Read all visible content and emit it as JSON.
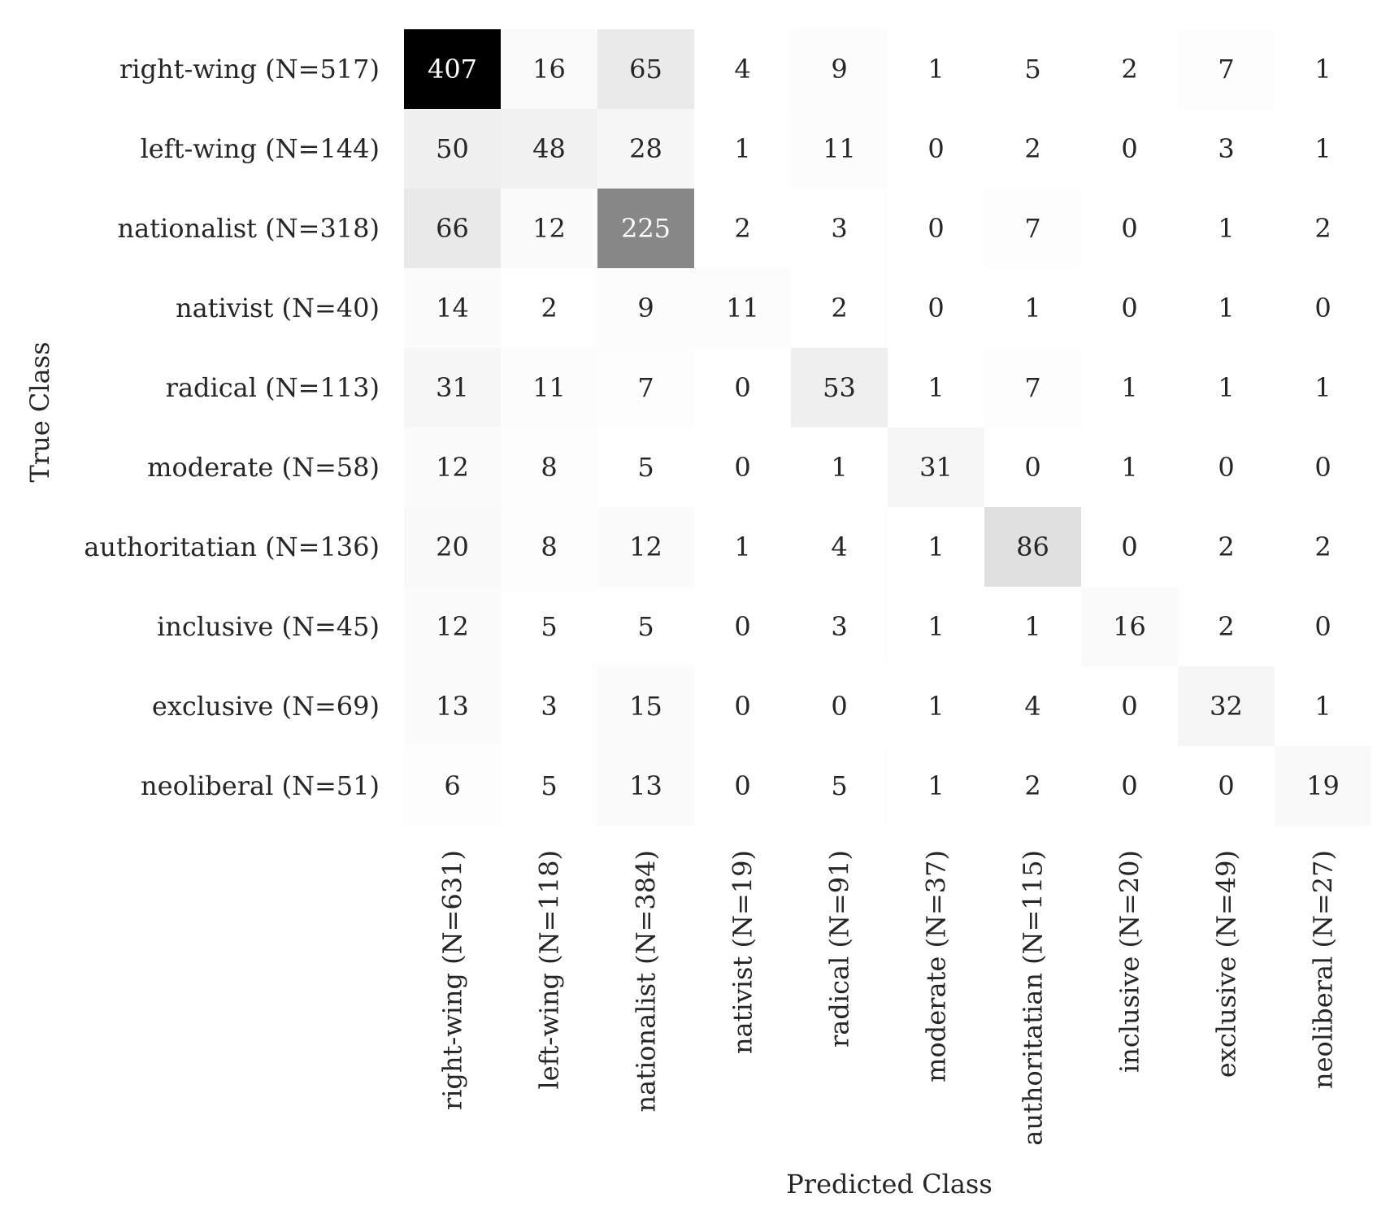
{
  "chart_data": {
    "type": "heatmap",
    "title": "",
    "xlabel": "Predicted Class",
    "ylabel": "True Class",
    "row_labels": [
      "right-wing (N=517)",
      "left-wing (N=144)",
      "nationalist (N=318)",
      "nativist (N=40)",
      "radical (N=113)",
      "moderate (N=58)",
      "authoritatian (N=136)",
      "inclusive (N=45)",
      "exclusive (N=69)",
      "neoliberal (N=51)"
    ],
    "col_labels": [
      "right-wing (N=631)",
      "left-wing (N=118)",
      "nationalist (N=384)",
      "nativist (N=19)",
      "radical (N=91)",
      "moderate (N=37)",
      "authoritatian (N=115)",
      "inclusive (N=20)",
      "exclusive (N=49)",
      "neoliberal (N=27)"
    ],
    "values": [
      [
        407,
        16,
        65,
        4,
        9,
        1,
        5,
        2,
        7,
        1
      ],
      [
        50,
        48,
        28,
        1,
        11,
        0,
        2,
        0,
        3,
        1
      ],
      [
        66,
        12,
        225,
        2,
        3,
        0,
        7,
        0,
        1,
        2
      ],
      [
        14,
        2,
        9,
        11,
        2,
        0,
        1,
        0,
        1,
        0
      ],
      [
        31,
        11,
        7,
        0,
        53,
        1,
        7,
        1,
        1,
        1
      ],
      [
        12,
        8,
        5,
        0,
        1,
        31,
        0,
        1,
        0,
        0
      ],
      [
        20,
        8,
        12,
        1,
        4,
        1,
        86,
        0,
        2,
        2
      ],
      [
        12,
        5,
        5,
        0,
        3,
        1,
        1,
        16,
        2,
        0
      ],
      [
        13,
        3,
        15,
        0,
        0,
        1,
        4,
        0,
        32,
        1
      ],
      [
        6,
        5,
        13,
        0,
        5,
        1,
        2,
        0,
        0,
        19
      ]
    ],
    "colormap": "greys",
    "vmin": 0,
    "vmax": 407,
    "colors": {
      "low": "#ffffff",
      "high": "#000000",
      "text_dark": "#262626",
      "text_light": "#ffffff"
    },
    "colorbar": false,
    "grid": false
  }
}
